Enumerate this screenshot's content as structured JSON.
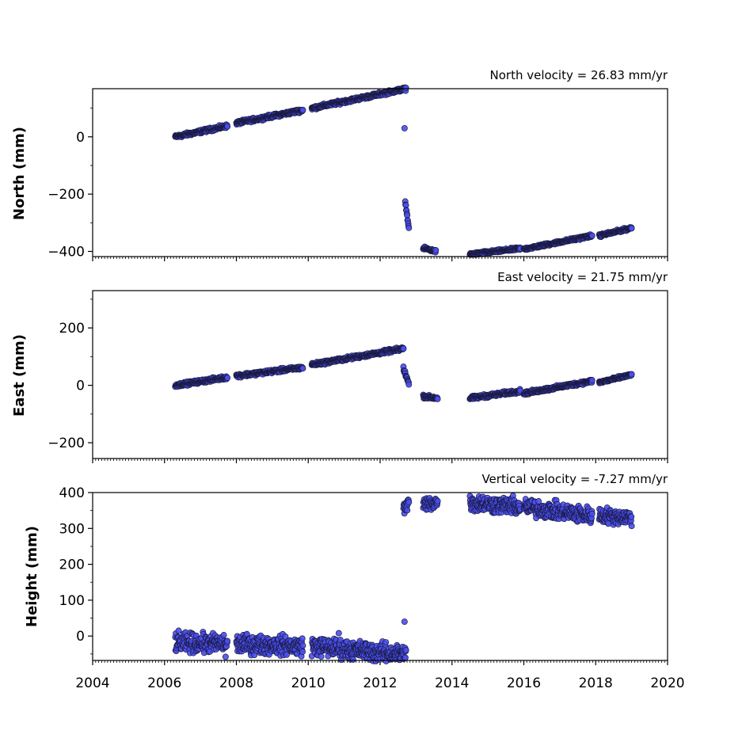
{
  "chart_data": [
    {
      "type": "scatter",
      "title": "North velocity = 26.83 mm/yr",
      "xlabel": "",
      "ylabel": "North (mm)",
      "xlim": [
        2004,
        2020
      ],
      "ylim": [
        -418,
        168
      ],
      "xticks": [
        2004,
        2006,
        2008,
        2010,
        2012,
        2014,
        2016,
        2018,
        2020
      ],
      "yticks": [
        -400,
        -200,
        0
      ],
      "ytick_labels": [
        "−400",
        "−200",
        "0"
      ],
      "grid": false,
      "marker_color": "#4a4ff0",
      "edge_color": "#1a1a40",
      "series": [
        {
          "segments": [
            {
              "x": [
                2006.3,
                2007.75
              ],
              "y": [
                0,
                38
              ],
              "spread": 5
            },
            {
              "x": [
                2008.0,
                2009.85
              ],
              "y": [
                48,
                93
              ],
              "spread": 5
            },
            {
              "x": [
                2010.1,
                2012.72
              ],
              "y": [
                100,
                168
              ],
              "spread": 5
            },
            {
              "x": [
                2012.7,
                2012.8
              ],
              "y": [
                -225,
                -320
              ],
              "spread": 4
            },
            {
              "x": [
                2013.2,
                2013.55
              ],
              "y": [
                -388,
                -400
              ],
              "spread": 4
            },
            {
              "x": [
                2014.5,
                2015.9
              ],
              "y": [
                -410,
                -390
              ],
              "spread": 4
            },
            {
              "x": [
                2016.0,
                2017.9
              ],
              "y": [
                -392,
                -345
              ],
              "spread": 4
            },
            {
              "x": [
                2018.1,
                2019.0
              ],
              "y": [
                -345,
                -318
              ],
              "spread": 4
            }
          ],
          "points": [
            {
              "x": 2012.68,
              "y": 30
            }
          ]
        }
      ]
    },
    {
      "type": "scatter",
      "title": "East velocity = 21.75 mm/yr",
      "xlabel": "",
      "ylabel": "East (mm)",
      "xlim": [
        2004,
        2020
      ],
      "ylim": [
        -255,
        330
      ],
      "xticks": [
        2004,
        2006,
        2008,
        2010,
        2012,
        2014,
        2016,
        2018,
        2020
      ],
      "yticks": [
        -200,
        0,
        200
      ],
      "ytick_labels": [
        "−200",
        "0",
        "200"
      ],
      "grid": false,
      "marker_color": "#4a4ff0",
      "edge_color": "#1a1a40",
      "series": [
        {
          "segments": [
            {
              "x": [
                2006.3,
                2007.75
              ],
              "y": [
                0,
                28
              ],
              "spread": 5
            },
            {
              "x": [
                2008.0,
                2009.85
              ],
              "y": [
                33,
                62
              ],
              "spread": 5
            },
            {
              "x": [
                2010.1,
                2012.65
              ],
              "y": [
                72,
                128
              ],
              "spread": 5
            },
            {
              "x": [
                2012.65,
                2012.8
              ],
              "y": [
                60,
                5
              ],
              "spread": 6
            },
            {
              "x": [
                2013.2,
                2013.6
              ],
              "y": [
                -38,
                -45
              ],
              "spread": 5
            },
            {
              "x": [
                2014.5,
                2015.9
              ],
              "y": [
                -45,
                -20
              ],
              "spread": 5
            },
            {
              "x": [
                2016.0,
                2017.9
              ],
              "y": [
                -28,
                15
              ],
              "spread": 5
            },
            {
              "x": [
                2018.1,
                2019.0
              ],
              "y": [
                10,
                37
              ],
              "spread": 4
            }
          ],
          "points": []
        }
      ]
    },
    {
      "type": "scatter",
      "title": "Vertical velocity = -7.27 mm/yr",
      "xlabel": "",
      "ylabel": "Height (mm)",
      "xlim": [
        2004,
        2020
      ],
      "ylim": [
        -68,
        400
      ],
      "xticks": [
        2004,
        2006,
        2008,
        2010,
        2012,
        2014,
        2016,
        2018,
        2020
      ],
      "xtick_labels": [
        "2004",
        "2006",
        "2008",
        "2010",
        "2012",
        "2014",
        "2016",
        "2018",
        "2020"
      ],
      "yticks": [
        0,
        100,
        200,
        300,
        400
      ],
      "ytick_labels": [
        "0",
        "100",
        "200",
        "300",
        "400"
      ],
      "grid": false,
      "marker_color": "#4a4ff0",
      "edge_color": "#1a1a40",
      "series": [
        {
          "segments": [
            {
              "x": [
                2006.3,
                2007.75
              ],
              "y": [
                -18,
                -22
              ],
              "spread": 22
            },
            {
              "x": [
                2008.0,
                2009.85
              ],
              "y": [
                -22,
                -28
              ],
              "spread": 22
            },
            {
              "x": [
                2010.1,
                2012.72
              ],
              "y": [
                -28,
                -52
              ],
              "spread": 22
            },
            {
              "x": [
                2012.65,
                2012.8
              ],
              "y": [
                350,
                375
              ],
              "spread": 18
            },
            {
              "x": [
                2013.2,
                2013.6
              ],
              "y": [
                365,
                375
              ],
              "spread": 18
            },
            {
              "x": [
                2014.5,
                2015.9
              ],
              "y": [
                372,
                360
              ],
              "spread": 20
            },
            {
              "x": [
                2016.0,
                2017.9
              ],
              "y": [
                360,
                335
              ],
              "spread": 20
            },
            {
              "x": [
                2018.1,
                2019.0
              ],
              "y": [
                337,
                330
              ],
              "spread": 18
            }
          ],
          "points": [
            {
              "x": 2007.7,
              "y": -58
            },
            {
              "x": 2012.68,
              "y": 40
            },
            {
              "x": 2010.85,
              "y": 8
            }
          ]
        }
      ]
    }
  ]
}
